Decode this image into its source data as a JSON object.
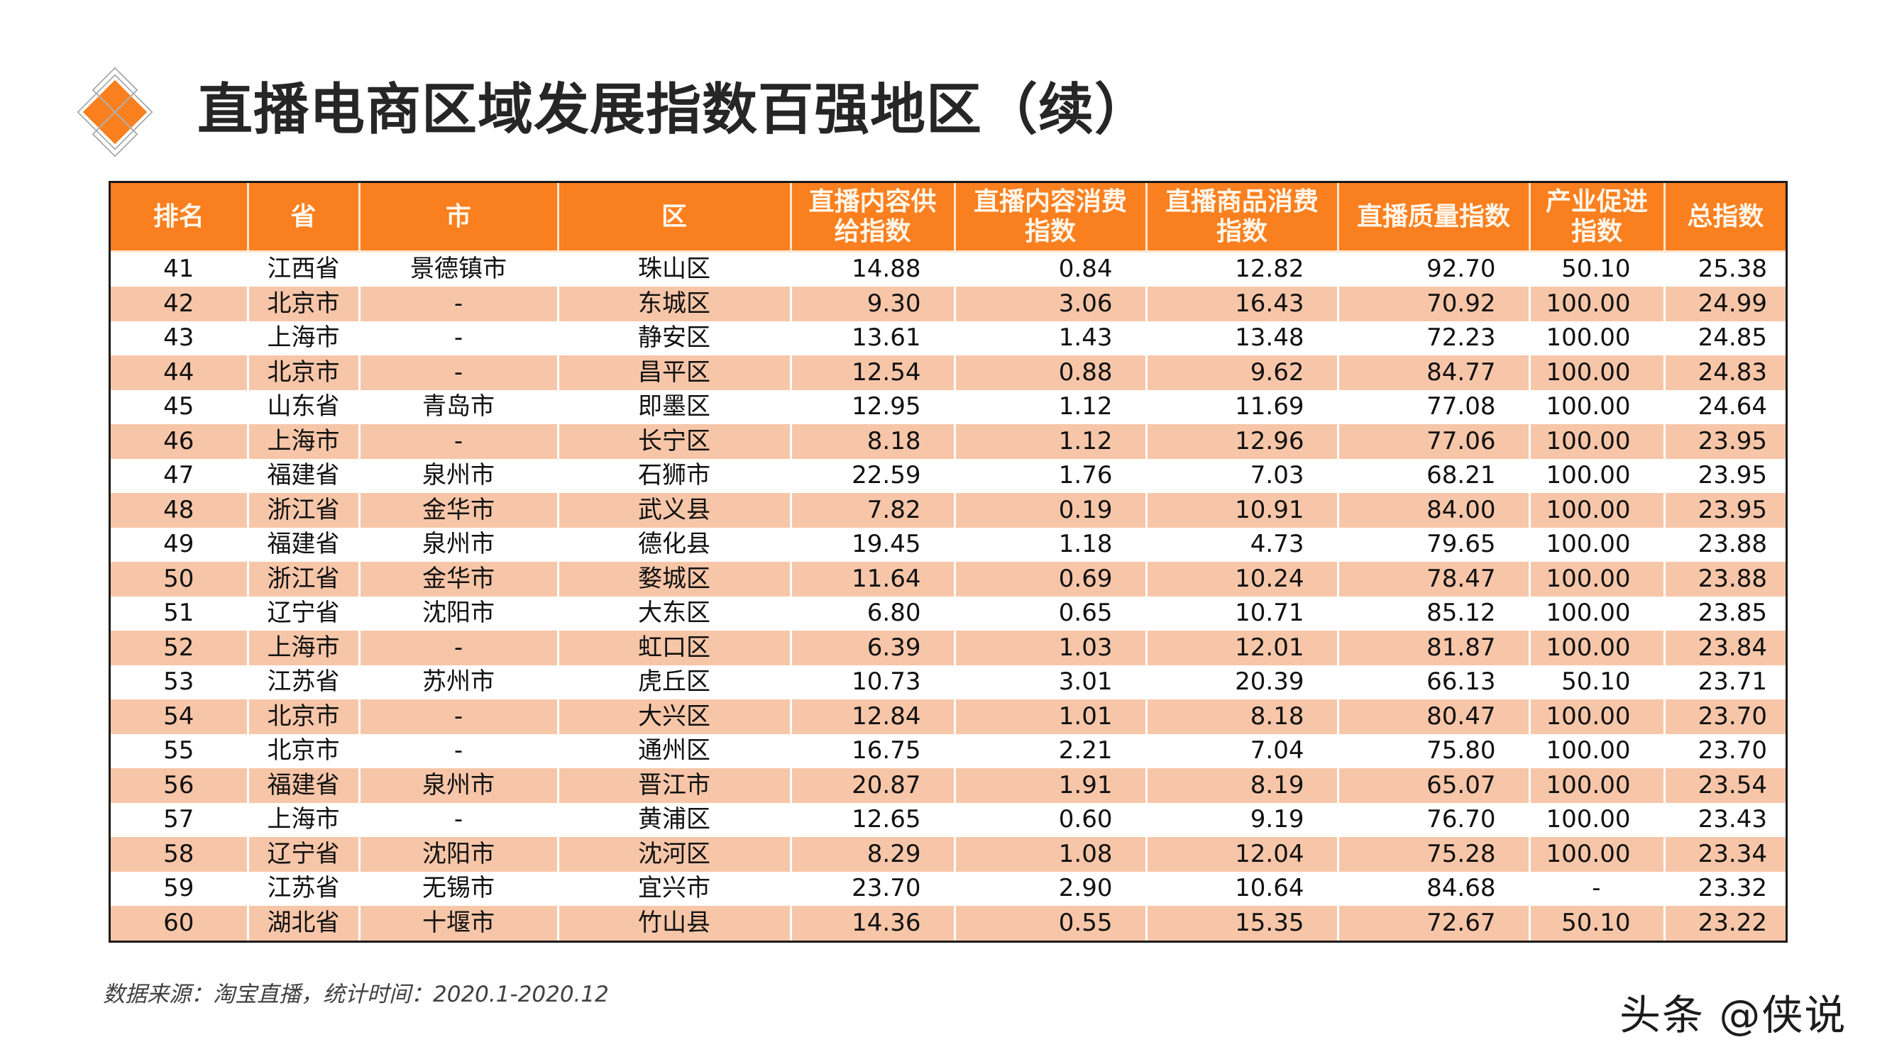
{
  "header": {
    "title": "直播电商区域发展指数百强地区（续）",
    "logo_icon": "orange-diamond-grid-icon",
    "accent_color": "#fa7f1e",
    "alt_row_color": "#f7c6a8"
  },
  "table": {
    "columns": [
      "排名",
      "省",
      "市",
      "区",
      "直播内容供给指数",
      "直播内容消费指数",
      "直播商品消费指数",
      "直播质量指数",
      "产业促进指数",
      "总指数"
    ],
    "column_lines": [
      [
        "排名"
      ],
      [
        "省"
      ],
      [
        "市"
      ],
      [
        "区"
      ],
      [
        "直播内容供",
        "给指数"
      ],
      [
        "直播内容消费",
        "指数"
      ],
      [
        "直播商品消费",
        "指数"
      ],
      [
        "直播质量指数"
      ],
      [
        "产业促进",
        "指数"
      ],
      [
        "总指数"
      ]
    ],
    "rows": [
      [
        "41",
        "江西省",
        "景德镇市",
        "珠山区",
        "14.88",
        "0.84",
        "12.82",
        "92.70",
        "50.10",
        "25.38"
      ],
      [
        "42",
        "北京市",
        "-",
        "东城区",
        "9.30",
        "3.06",
        "16.43",
        "70.92",
        "100.00",
        "24.99"
      ],
      [
        "43",
        "上海市",
        "-",
        "静安区",
        "13.61",
        "1.43",
        "13.48",
        "72.23",
        "100.00",
        "24.85"
      ],
      [
        "44",
        "北京市",
        "-",
        "昌平区",
        "12.54",
        "0.88",
        "9.62",
        "84.77",
        "100.00",
        "24.83"
      ],
      [
        "45",
        "山东省",
        "青岛市",
        "即墨区",
        "12.95",
        "1.12",
        "11.69",
        "77.08",
        "100.00",
        "24.64"
      ],
      [
        "46",
        "上海市",
        "-",
        "长宁区",
        "8.18",
        "1.12",
        "12.96",
        "77.06",
        "100.00",
        "23.95"
      ],
      [
        "47",
        "福建省",
        "泉州市",
        "石狮市",
        "22.59",
        "1.76",
        "7.03",
        "68.21",
        "100.00",
        "23.95"
      ],
      [
        "48",
        "浙江省",
        "金华市",
        "武义县",
        "7.82",
        "0.19",
        "10.91",
        "84.00",
        "100.00",
        "23.95"
      ],
      [
        "49",
        "福建省",
        "泉州市",
        "德化县",
        "19.45",
        "1.18",
        "4.73",
        "79.65",
        "100.00",
        "23.88"
      ],
      [
        "50",
        "浙江省",
        "金华市",
        "婺城区",
        "11.64",
        "0.69",
        "10.24",
        "78.47",
        "100.00",
        "23.88"
      ],
      [
        "51",
        "辽宁省",
        "沈阳市",
        "大东区",
        "6.80",
        "0.65",
        "10.71",
        "85.12",
        "100.00",
        "23.85"
      ],
      [
        "52",
        "上海市",
        "-",
        "虹口区",
        "6.39",
        "1.03",
        "12.01",
        "81.87",
        "100.00",
        "23.84"
      ],
      [
        "53",
        "江苏省",
        "苏州市",
        "虎丘区",
        "10.73",
        "3.01",
        "20.39",
        "66.13",
        "50.10",
        "23.71"
      ],
      [
        "54",
        "北京市",
        "-",
        "大兴区",
        "12.84",
        "1.01",
        "8.18",
        "80.47",
        "100.00",
        "23.70"
      ],
      [
        "55",
        "北京市",
        "-",
        "通州区",
        "16.75",
        "2.21",
        "7.04",
        "75.80",
        "100.00",
        "23.70"
      ],
      [
        "56",
        "福建省",
        "泉州市",
        "晋江市",
        "20.87",
        "1.91",
        "8.19",
        "65.07",
        "100.00",
        "23.54"
      ],
      [
        "57",
        "上海市",
        "-",
        "黄浦区",
        "12.65",
        "0.60",
        "9.19",
        "76.70",
        "100.00",
        "23.43"
      ],
      [
        "58",
        "辽宁省",
        "沈阳市",
        "沈河区",
        "8.29",
        "1.08",
        "12.04",
        "75.28",
        "100.00",
        "23.34"
      ],
      [
        "59",
        "江苏省",
        "无锡市",
        "宜兴市",
        "23.70",
        "2.90",
        "10.64",
        "84.68",
        "-",
        "23.32"
      ],
      [
        "60",
        "湖北省",
        "十堰市",
        "竹山县",
        "14.36",
        "0.55",
        "15.35",
        "72.67",
        "50.10",
        "23.22"
      ]
    ]
  },
  "footer": {
    "source": "数据来源：淘宝直播，统计时间：2020.1-2020.12",
    "watermark": "头条 @侠说"
  }
}
